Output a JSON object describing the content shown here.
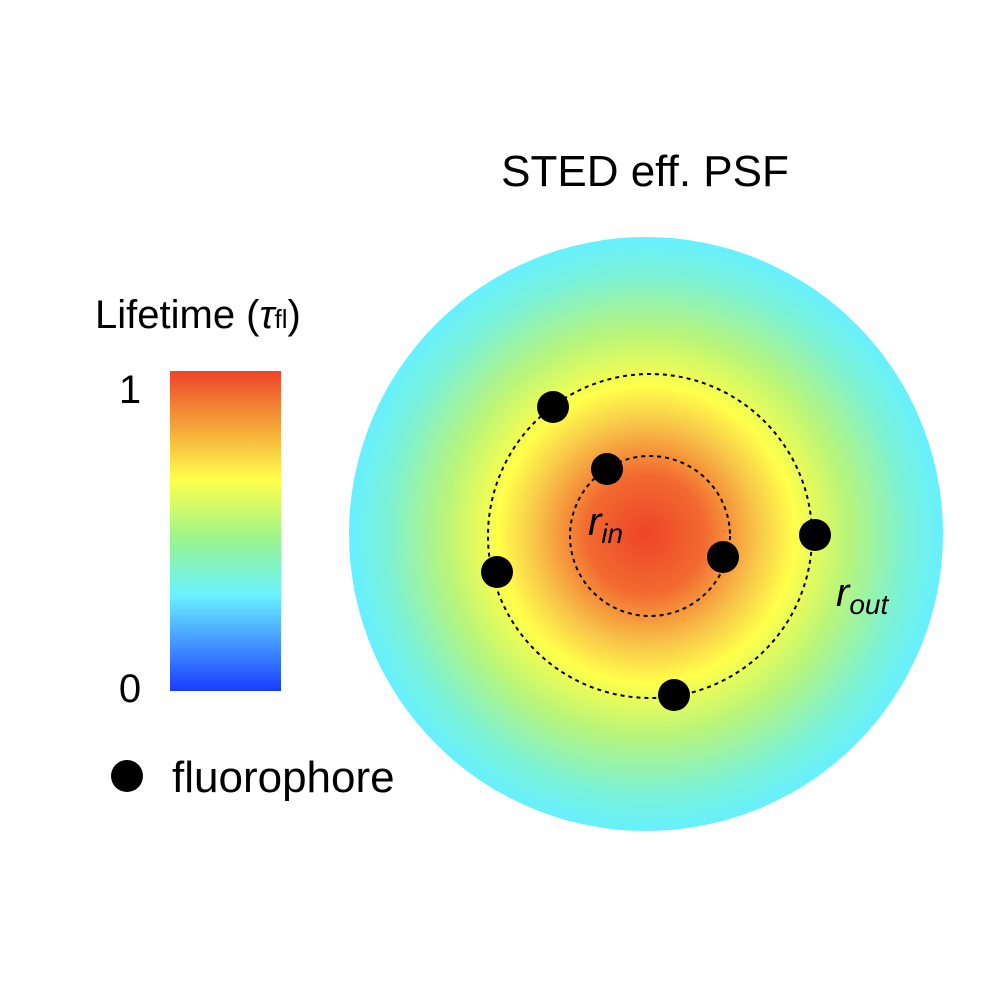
{
  "title": "STED eff. PSF",
  "legend": {
    "colorbar_title": "Lifetime (",
    "colorbar_symbol": "τ",
    "colorbar_subscript": "fl",
    "colorbar_close": ")",
    "max_label": "1",
    "min_label": "0",
    "marker_label": "fluorophore"
  },
  "labels": {
    "inner_radius_base": "r",
    "inner_radius_sub": "in",
    "outer_radius_base": "r",
    "outer_radius_sub": "out"
  },
  "colormap": {
    "stops": [
      {
        "value": 0.0,
        "color": "#1a3cff"
      },
      {
        "value": 0.17,
        "color": "#4aa3ff"
      },
      {
        "value": 0.3,
        "color": "#6af2ff"
      },
      {
        "value": 0.48,
        "color": "#9cf58a"
      },
      {
        "value": 0.66,
        "color": "#ffff4a"
      },
      {
        "value": 0.82,
        "color": "#f4a83a"
      },
      {
        "value": 1.0,
        "color": "#ee4428"
      }
    ]
  },
  "colors": {
    "fluorophore": "#000000",
    "dashed_circle": "#000000"
  }
}
